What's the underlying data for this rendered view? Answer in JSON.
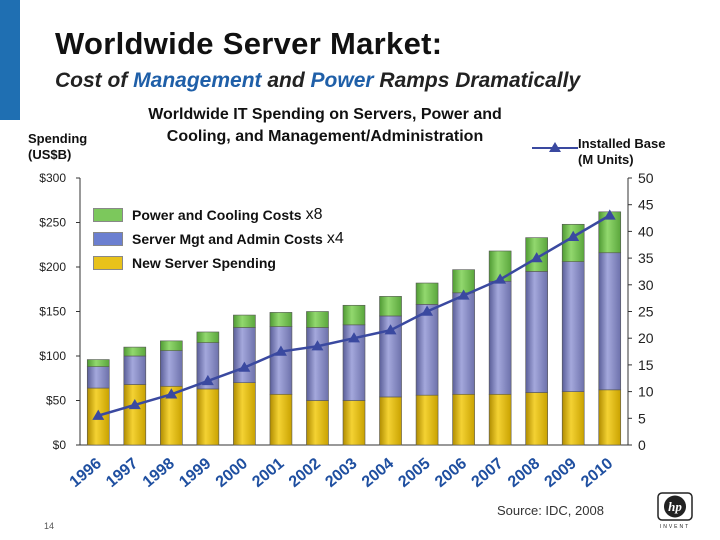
{
  "slide": {
    "title": "Worldwide Server Market:",
    "subtitle_parts": [
      "Cost of ",
      "Management",
      " and ",
      "Power",
      " Ramps Dramatically"
    ],
    "source": "Source: IDC, 2008",
    "page_number": "14",
    "logo_text": "hp",
    "logo_tagline": "INVENT"
  },
  "colors": {
    "new_server": "#e8c21a",
    "mgmt": "#8a8fc8",
    "power": "#7cc85c",
    "line": "#3a49a0",
    "accent": "#1f6fb2"
  },
  "chart_data": {
    "type": "bar",
    "stacked": true,
    "title_lines": [
      "Worldwide IT Spending on Servers, Power and",
      "Cooling, and Management/Administration"
    ],
    "ylabel_left_lines": [
      "Spending",
      "(US$B)"
    ],
    "ylabel_right_lines": [
      "Installed Base",
      "(M Units)"
    ],
    "categories": [
      "1996",
      "1997",
      "1998",
      "1999",
      "2000",
      "2001",
      "2002",
      "2003",
      "2004",
      "2005",
      "2006",
      "2007",
      "2008",
      "2009",
      "2010"
    ],
    "series": [
      {
        "name": "Power and Cooling Costs",
        "multiplier": "x8",
        "values": [
          8,
          10,
          11,
          12,
          14,
          16,
          18,
          22,
          22,
          24,
          26,
          34,
          38,
          42,
          46
        ]
      },
      {
        "name": "Server Mgt and Admin Costs",
        "multiplier": "x4",
        "values": [
          24,
          32,
          40,
          52,
          62,
          76,
          82,
          85,
          91,
          102,
          114,
          127,
          136,
          146,
          154
        ]
      },
      {
        "name": "New Server Spending",
        "multiplier": "",
        "values": [
          64,
          68,
          66,
          63,
          70,
          57,
          50,
          50,
          54,
          56,
          57,
          57,
          59,
          60,
          62
        ]
      }
    ],
    "line_series": {
      "name": "Installed Base",
      "axis": "right",
      "values": [
        5.5,
        7.5,
        9.5,
        12,
        14.5,
        17.5,
        18.5,
        20,
        21.5,
        25,
        28,
        31,
        35,
        39,
        43
      ]
    },
    "ylim_left": [
      0,
      300
    ],
    "yticks_left": [
      "$0",
      "$50",
      "$100",
      "$150",
      "$200",
      "$250",
      "$300"
    ],
    "ylim_right": [
      0,
      50
    ],
    "yticks_right": [
      "0",
      "5",
      "10",
      "15",
      "20",
      "25",
      "30",
      "35",
      "40",
      "45",
      "50"
    ],
    "legend_placement": "top-left",
    "grid": false
  }
}
